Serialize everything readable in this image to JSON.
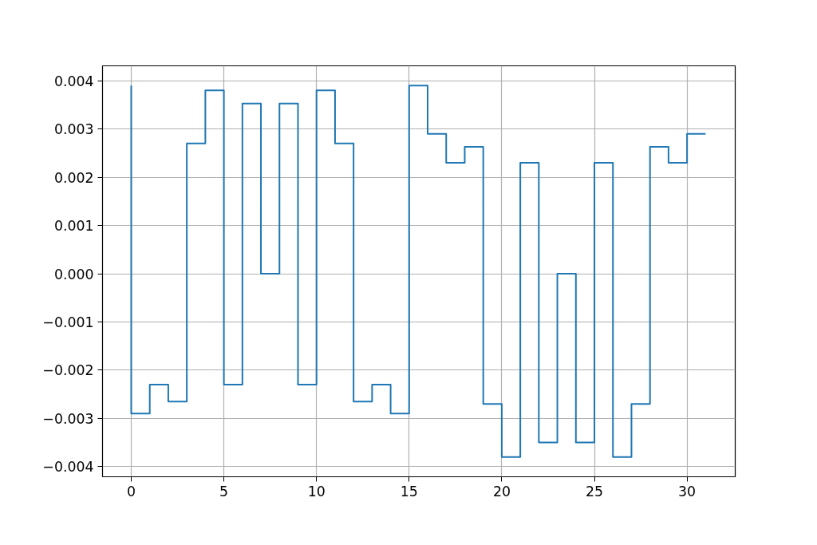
{
  "chart_data": {
    "type": "step",
    "x": [
      0,
      1,
      2,
      3,
      4,
      5,
      6,
      7,
      8,
      9,
      10,
      11,
      12,
      13,
      14,
      15,
      16,
      17,
      18,
      19,
      20,
      21,
      22,
      23,
      24,
      25,
      26,
      27,
      28,
      29,
      30,
      31
    ],
    "series": [
      {
        "color": "#1f77b4",
        "values": [
          0.0039,
          -0.0029,
          -0.0023,
          -0.00265,
          0.0027,
          0.0038,
          -0.0023,
          0.00353,
          0.0,
          0.00353,
          -0.0023,
          0.0038,
          0.0027,
          -0.00265,
          -0.0023,
          -0.0029,
          0.0039,
          0.0029,
          0.0023,
          0.00263,
          -0.0027,
          -0.0038,
          0.0023,
          -0.0035,
          0.0,
          -0.0035,
          0.0023,
          -0.0038,
          -0.0027,
          0.00263,
          0.0023,
          0.0029
        ]
      }
    ],
    "xlim": [
      -1.55,
      32.6
    ],
    "ylim": [
      -0.00421,
      0.00431
    ],
    "xticks": [
      0,
      5,
      10,
      15,
      20,
      25,
      30
    ],
    "yticks": [
      {
        "value": -0.004,
        "label": "−0.004"
      },
      {
        "value": -0.003,
        "label": "−0.003"
      },
      {
        "value": -0.002,
        "label": "−0.002"
      },
      {
        "value": -0.001,
        "label": "−0.001"
      },
      {
        "value": 0,
        "label": "0.000"
      },
      0.001,
      0.002,
      0.003,
      0.004
    ],
    "grid": true
  }
}
